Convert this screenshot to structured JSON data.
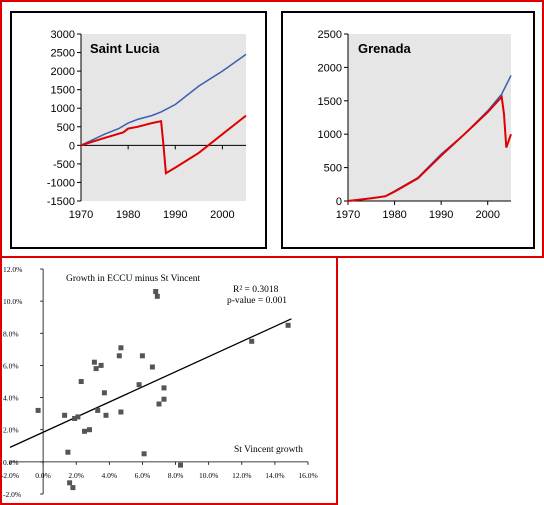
{
  "chart_data": [
    {
      "type": "line",
      "title": "Saint Lucia",
      "xlim": [
        1970,
        2005
      ],
      "ylim": [
        -1500,
        3000
      ],
      "xticks": [
        "1970",
        "1980",
        "1990",
        "2000"
      ],
      "yticks": [
        "3000",
        "2500",
        "2000",
        "1500",
        "1000",
        "500",
        "0",
        "-500",
        "-1000",
        "-1500"
      ],
      "grid": false,
      "series": [
        {
          "color": "#3b5fb0",
          "x": [
            1970,
            1975,
            1978,
            1980,
            1982,
            1985,
            1987,
            1990,
            1995,
            2000,
            2005
          ],
          "y": [
            0,
            300,
            450,
            600,
            700,
            800,
            900,
            1100,
            1600,
            2000,
            2450
          ]
        },
        {
          "color": "#e00000",
          "x": [
            1970,
            1975,
            1979,
            1980,
            1982,
            1985,
            1987,
            1987.5,
            1988,
            1990,
            1995,
            2000,
            2005
          ],
          "y": [
            0,
            200,
            350,
            450,
            500,
            600,
            650,
            0,
            -750,
            -600,
            -200,
            300,
            800
          ]
        }
      ]
    },
    {
      "type": "line",
      "title": "Grenada",
      "xlim": [
        1970,
        2005
      ],
      "ylim": [
        0,
        2500
      ],
      "xticks": [
        "1970",
        "1980",
        "1990",
        "2000"
      ],
      "yticks": [
        "2500",
        "2000",
        "1500",
        "1000",
        "500",
        "0"
      ],
      "grid": false,
      "series": [
        {
          "color": "#3b5fb0",
          "x": [
            1970,
            1975,
            1978,
            1980,
            1985,
            1990,
            1995,
            2000,
            2003,
            2005
          ],
          "y": [
            0,
            40,
            70,
            150,
            350,
            700,
            1000,
            1350,
            1600,
            1880
          ]
        },
        {
          "color": "#e00000",
          "x": [
            1970,
            1975,
            1978,
            1980,
            1985,
            1990,
            1995,
            2000,
            2003,
            2003.5,
            2004,
            2005
          ],
          "y": [
            0,
            40,
            70,
            140,
            340,
            680,
            1000,
            1330,
            1560,
            1300,
            800,
            1000
          ]
        }
      ]
    },
    {
      "type": "scatter",
      "ylabel": "Growth in ECCU minus St Vincent",
      "xlabel": "St Vincent growth",
      "annotations": [
        "R² = 0.3018",
        "p-value = 0.001"
      ],
      "xlim": [
        -2,
        16
      ],
      "ylim": [
        -2,
        12
      ],
      "xticks": [
        "-2.0%",
        "0.0%",
        "2.0%",
        "4.0%",
        "6.0%",
        "8.0%",
        "10.0%",
        "12.0%",
        "14.0%",
        "16.0%"
      ],
      "yticks": [
        "12.0%",
        "10.0%",
        "8.0%",
        "6.0%",
        "4.0%",
        "2.0%",
        "0.0%",
        "-2.0%"
      ],
      "grid": false,
      "marker_color": "#555555",
      "points": [
        [
          -0.3,
          3.2
        ],
        [
          1.3,
          2.9
        ],
        [
          1.5,
          0.6
        ],
        [
          1.6,
          -1.3
        ],
        [
          1.8,
          -1.6
        ],
        [
          1.9,
          2.7
        ],
        [
          2.1,
          2.8
        ],
        [
          2.3,
          5.0
        ],
        [
          2.5,
          1.9
        ],
        [
          2.8,
          2.0
        ],
        [
          3.1,
          6.2
        ],
        [
          3.2,
          5.8
        ],
        [
          3.3,
          3.2
        ],
        [
          3.5,
          6.0
        ],
        [
          3.7,
          4.3
        ],
        [
          3.8,
          2.9
        ],
        [
          4.6,
          6.6
        ],
        [
          4.7,
          7.1
        ],
        [
          4.7,
          3.1
        ],
        [
          5.8,
          4.8
        ],
        [
          6.0,
          6.6
        ],
        [
          6.1,
          0.5
        ],
        [
          6.6,
          5.9
        ],
        [
          6.8,
          10.6
        ],
        [
          6.9,
          10.3
        ],
        [
          7.0,
          3.6
        ],
        [
          7.3,
          3.9
        ],
        [
          7.3,
          4.6
        ],
        [
          8.3,
          -0.2
        ],
        [
          12.6,
          7.5
        ],
        [
          14.8,
          8.5
        ]
      ],
      "trendline": {
        "x": [
          -2,
          15
        ],
        "y": [
          0.9,
          8.9
        ]
      }
    }
  ]
}
